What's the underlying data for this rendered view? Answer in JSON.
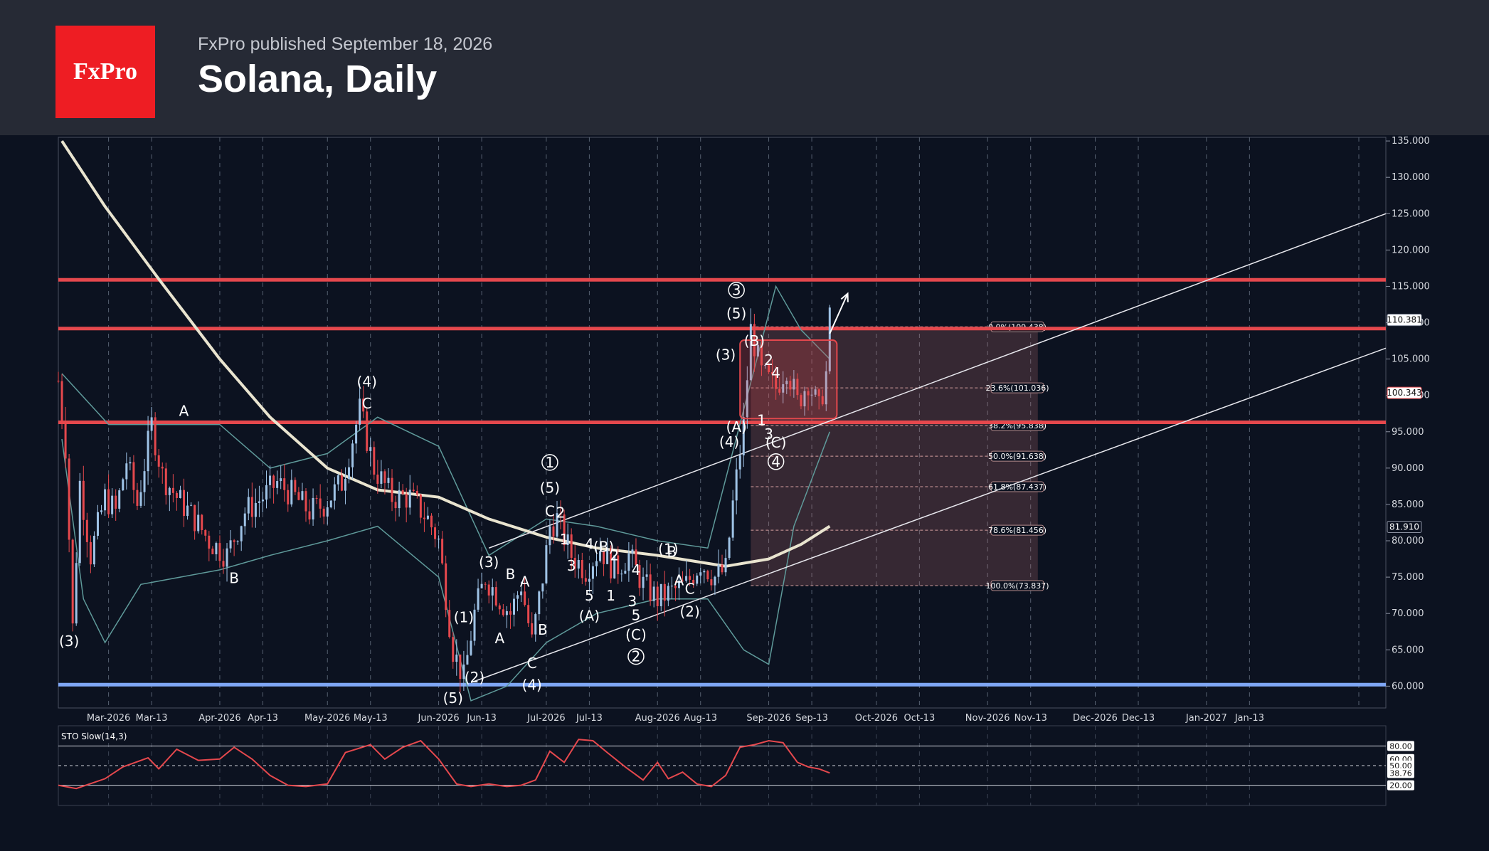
{
  "header": {
    "logo": "FxPro",
    "published": "FxPro published September 18, 2026",
    "title": "Solana, Daily"
  },
  "colors": {
    "background": "#0c1220",
    "header": "#262a35",
    "brand": "#ee1d23",
    "level": "#e5484d",
    "support": "#7fa7f5",
    "bull_candle": "#9fc3e6",
    "bear_candle": "#e5484d",
    "ma": "#e9e4cf"
  },
  "chart_data": {
    "type": "candlestick",
    "title": "Solana, Daily",
    "x_range": [
      "2026-02-15",
      "2027-02-20"
    ],
    "ylim": [
      57,
      135.5
    ],
    "grid": true,
    "x_ticks": [
      {
        "date": "2026-03-01",
        "label": "Mar-2026"
      },
      {
        "date": "2026-03-13",
        "label": "Mar-13"
      },
      {
        "date": "2026-04-01",
        "label": "Apr-2026"
      },
      {
        "date": "2026-04-13",
        "label": "Apr-13"
      },
      {
        "date": "2026-05-01",
        "label": "May-2026"
      },
      {
        "date": "2026-05-13",
        "label": "May-13"
      },
      {
        "date": "2026-06-01",
        "label": "Jun-2026"
      },
      {
        "date": "2026-06-13",
        "label": "Jun-13"
      },
      {
        "date": "2026-07-01",
        "label": "Jul-2026"
      },
      {
        "date": "2026-07-13",
        "label": "Jul-13"
      },
      {
        "date": "2026-08-01",
        "label": "Aug-2026"
      },
      {
        "date": "2026-08-13",
        "label": "Aug-13"
      },
      {
        "date": "2026-09-01",
        "label": "Sep-2026"
      },
      {
        "date": "2026-09-13",
        "label": "Sep-13"
      },
      {
        "date": "2026-10-01",
        "label": "Oct-2026"
      },
      {
        "date": "2026-10-13",
        "label": "Oct-13"
      },
      {
        "date": "2026-11-01",
        "label": "Nov-2026"
      },
      {
        "date": "2026-11-13",
        "label": "Nov-13"
      },
      {
        "date": "2026-12-01",
        "label": "Dec-2026"
      },
      {
        "date": "2026-12-13",
        "label": "Dec-13"
      },
      {
        "date": "2027-01-01",
        "label": "Jan-2027"
      },
      {
        "date": "2027-01-13",
        "label": "Jan-13"
      }
    ],
    "y_ticks": [
      "135.000",
      "130.000",
      "125.000",
      "120.000",
      "115.000",
      "110.000",
      "105.000",
      "100.000",
      "95.000",
      "90.000",
      "85.000",
      "80.000",
      "75.000",
      "70.000",
      "65.000",
      "60.000"
    ],
    "price_path": [
      [
        "2026-02-15",
        102
      ],
      [
        "2026-02-17",
        93
      ],
      [
        "2026-02-19",
        68
      ],
      [
        "2026-02-21",
        88
      ],
      [
        "2026-02-24",
        78
      ],
      [
        "2026-02-28",
        86
      ],
      [
        "2026-03-03",
        84
      ],
      [
        "2026-03-06",
        91
      ],
      [
        "2026-03-09",
        85
      ],
      [
        "2026-03-13",
        96
      ],
      [
        "2026-03-16",
        89
      ],
      [
        "2026-03-20",
        86
      ],
      [
        "2026-03-25",
        83
      ],
      [
        "2026-03-29",
        80
      ],
      [
        "2026-04-03",
        78
      ],
      [
        "2026-04-08",
        84
      ],
      [
        "2026-04-13",
        86
      ],
      [
        "2026-04-17",
        88
      ],
      [
        "2026-04-22",
        86
      ],
      [
        "2026-04-26",
        84
      ],
      [
        "2026-04-30",
        85
      ],
      [
        "2026-05-05",
        88
      ],
      [
        "2026-05-10",
        98
      ],
      [
        "2026-05-14",
        90
      ],
      [
        "2026-05-19",
        86
      ],
      [
        "2026-05-24",
        86
      ],
      [
        "2026-05-29",
        83
      ],
      [
        "2026-06-01",
        80
      ],
      [
        "2026-06-05",
        65
      ],
      [
        "2026-06-08",
        61
      ],
      [
        "2026-06-11",
        70
      ],
      [
        "2026-06-14",
        75
      ],
      [
        "2026-06-18",
        72
      ],
      [
        "2026-06-21",
        70
      ],
      [
        "2026-06-24",
        74
      ],
      [
        "2026-06-27",
        66
      ],
      [
        "2026-06-30",
        75
      ],
      [
        "2026-07-02",
        82
      ],
      [
        "2026-07-04",
        83
      ],
      [
        "2026-07-08",
        78
      ],
      [
        "2026-07-12",
        76
      ],
      [
        "2026-07-16",
        79
      ],
      [
        "2026-07-20",
        76
      ],
      [
        "2026-07-24",
        78
      ],
      [
        "2026-07-28",
        74
      ],
      [
        "2026-08-01",
        72
      ],
      [
        "2026-08-05",
        73
      ],
      [
        "2026-08-09",
        74
      ],
      [
        "2026-08-13",
        77
      ],
      [
        "2026-08-17",
        75
      ],
      [
        "2026-08-20",
        76
      ],
      [
        "2026-08-22",
        85
      ],
      [
        "2026-08-25",
        96
      ],
      [
        "2026-08-27",
        109
      ],
      [
        "2026-08-30",
        103
      ],
      [
        "2026-09-03",
        101
      ],
      [
        "2026-09-06",
        104
      ],
      [
        "2026-09-09",
        99
      ],
      [
        "2026-09-12",
        102
      ],
      [
        "2026-09-15",
        98
      ],
      [
        "2026-09-17",
        103
      ],
      [
        "2026-09-18",
        110.4
      ]
    ],
    "ma_path": [
      [
        "2026-02-16",
        135
      ],
      [
        "2026-02-28",
        126
      ],
      [
        "2026-03-15",
        116
      ],
      [
        "2026-04-01",
        105
      ],
      [
        "2026-04-15",
        97
      ],
      [
        "2026-05-01",
        90
      ],
      [
        "2026-05-15",
        87
      ],
      [
        "2026-06-01",
        86
      ],
      [
        "2026-06-15",
        83
      ],
      [
        "2026-07-01",
        80.5
      ],
      [
        "2026-07-15",
        79
      ],
      [
        "2026-08-01",
        78
      ],
      [
        "2026-08-20",
        76.5
      ],
      [
        "2026-09-01",
        77.5
      ],
      [
        "2026-09-10",
        79.5
      ],
      [
        "2026-09-18",
        82
      ]
    ],
    "bollinger_upper": [
      [
        "2026-02-16",
        103
      ],
      [
        "2026-03-01",
        96
      ],
      [
        "2026-03-15",
        96
      ],
      [
        "2026-04-01",
        96
      ],
      [
        "2026-04-15",
        90
      ],
      [
        "2026-05-01",
        92
      ],
      [
        "2026-05-15",
        97
      ],
      [
        "2026-06-01",
        93
      ],
      [
        "2026-06-15",
        78
      ],
      [
        "2026-07-01",
        83
      ],
      [
        "2026-07-15",
        82
      ],
      [
        "2026-08-01",
        80
      ],
      [
        "2026-08-15",
        79
      ],
      [
        "2026-08-25",
        98
      ],
      [
        "2026-09-03",
        115
      ],
      [
        "2026-09-10",
        109
      ],
      [
        "2026-09-18",
        105
      ]
    ],
    "bollinger_lower": [
      [
        "2026-02-16",
        94
      ],
      [
        "2026-02-22",
        72
      ],
      [
        "2026-02-28",
        66
      ],
      [
        "2026-03-10",
        74
      ],
      [
        "2026-04-01",
        76
      ],
      [
        "2026-04-15",
        78
      ],
      [
        "2026-05-01",
        80
      ],
      [
        "2026-05-15",
        82
      ],
      [
        "2026-06-01",
        75
      ],
      [
        "2026-06-10",
        58
      ],
      [
        "2026-06-20",
        60
      ],
      [
        "2026-07-01",
        66
      ],
      [
        "2026-07-15",
        70
      ],
      [
        "2026-08-01",
        72
      ],
      [
        "2026-08-15",
        72
      ],
      [
        "2026-08-25",
        65
      ],
      [
        "2026-09-01",
        63
      ],
      [
        "2026-09-08",
        82
      ],
      [
        "2026-09-18",
        95
      ]
    ],
    "horizontal_levels": [
      {
        "name": "resistance-115.9",
        "value": 115.9,
        "color": "#e5484d"
      },
      {
        "name": "resistance-109.2",
        "value": 109.2,
        "color": "#e5484d"
      },
      {
        "name": "resistance-96.3",
        "value": 96.3,
        "color": "#e5484d"
      },
      {
        "name": "support-60.2",
        "value": 60.2,
        "color": "#7fa7f5"
      }
    ],
    "channel_lines": [
      {
        "from": [
          "2026-06-15",
          79
        ],
        "to": [
          "2027-02-20",
          125
        ]
      },
      {
        "from": [
          "2026-06-10",
          60.5
        ],
        "to": [
          "2027-02-20",
          106.5
        ]
      }
    ],
    "fibonacci": {
      "from_date": "2026-08-27",
      "to_date": "2026-11-15",
      "levels": [
        {
          "value": 109.438,
          "label": "0.0%(109.438)"
        },
        {
          "value": 101.036,
          "label": "23.6%(101.036)"
        },
        {
          "value": 95.838,
          "label": "38.2%(95.838)"
        },
        {
          "value": 91.638,
          "label": "50.0%(91.638)"
        },
        {
          "value": 87.437,
          "label": "61.8%(87.437)"
        },
        {
          "value": 81.456,
          "label": "78.6%(81.456)"
        },
        {
          "value": 73.837,
          "label": "100.0%(73.837)"
        }
      ]
    },
    "consolidation_box": {
      "x0": "2026-08-24",
      "x1": "2026-09-20",
      "y0": 96.8,
      "y1": 107.6
    },
    "price_tags": [
      {
        "value": 110.381,
        "label": "110.381",
        "style": "outline"
      },
      {
        "value": 100.343,
        "label": "100.343",
        "style": "outline-red"
      },
      {
        "value": 81.91,
        "label": "81.910",
        "style": "dark"
      }
    ],
    "projection_arrow": {
      "from": [
        "2026-09-18",
        108.5
      ],
      "to": [
        "2026-09-23",
        114
      ]
    },
    "wave_labels": [
      {
        "t": "(3)",
        "d": "2026-02-18",
        "v": 65.5
      },
      {
        "t": "A",
        "d": "2026-03-22",
        "v": 97.2
      },
      {
        "t": "B",
        "d": "2026-04-05",
        "v": 74.2
      },
      {
        "t": "(4)",
        "d": "2026-05-12",
        "v": 101.2
      },
      {
        "t": "C",
        "d": "2026-05-12",
        "v": 98.2
      },
      {
        "t": "(5)",
        "d": "2026-06-05",
        "v": 57.7
      },
      {
        "t": "(2)",
        "d": "2026-06-11",
        "v": 60.5
      },
      {
        "t": "(1)",
        "d": "2026-06-08",
        "v": 68.8
      },
      {
        "t": "(3)",
        "d": "2026-06-15",
        "v": 76.4
      },
      {
        "t": "A",
        "d": "2026-06-18",
        "v": 65.9
      },
      {
        "t": "B",
        "d": "2026-06-21",
        "v": 74.7
      },
      {
        "t": "A",
        "d": "2026-06-25",
        "v": 73.7
      },
      {
        "t": "C",
        "d": "2026-06-27",
        "v": 62.5
      },
      {
        "t": "B",
        "d": "2026-06-30",
        "v": 67.1
      },
      {
        "t": "(4)",
        "d": "2026-06-27",
        "v": 59.5
      },
      {
        "t": "1",
        "d": "2026-07-02",
        "v": 90.1,
        "circled": true
      },
      {
        "t": "(5)",
        "d": "2026-07-02",
        "v": 86.6
      },
      {
        "t": "C",
        "d": "2026-07-02",
        "v": 83.4
      },
      {
        "t": "2",
        "d": "2026-07-05",
        "v": 83.2
      },
      {
        "t": "1",
        "d": "2026-07-06",
        "v": 79.5
      },
      {
        "t": "3",
        "d": "2026-07-08",
        "v": 75.9
      },
      {
        "t": "4",
        "d": "2026-07-13",
        "v": 78.9
      },
      {
        "t": "(B)",
        "d": "2026-07-17",
        "v": 78.5
      },
      {
        "t": "2",
        "d": "2026-07-20",
        "v": 77.3
      },
      {
        "t": "5",
        "d": "2026-07-13",
        "v": 71.8
      },
      {
        "t": "(A)",
        "d": "2026-07-13",
        "v": 69.0
      },
      {
        "t": "1",
        "d": "2026-07-19",
        "v": 71.8
      },
      {
        "t": "4",
        "d": "2026-07-26",
        "v": 75.3
      },
      {
        "t": "3",
        "d": "2026-07-25",
        "v": 71.0
      },
      {
        "t": "5",
        "d": "2026-07-26",
        "v": 69.1
      },
      {
        "t": "(C)",
        "d": "2026-07-26",
        "v": 66.4
      },
      {
        "t": "2",
        "d": "2026-07-26",
        "v": 63.4,
        "circled": true
      },
      {
        "t": "(1)",
        "d": "2026-08-04",
        "v": 78.2
      },
      {
        "t": "B",
        "d": "2026-08-05",
        "v": 77.8
      },
      {
        "t": "A",
        "d": "2026-08-07",
        "v": 73.9
      },
      {
        "t": "C",
        "d": "2026-08-10",
        "v": 72.7
      },
      {
        "t": "(2)",
        "d": "2026-08-10",
        "v": 69.6
      },
      {
        "t": "3",
        "d": "2026-08-23",
        "v": 113.8,
        "circled": true
      },
      {
        "t": "(5)",
        "d": "2026-08-23",
        "v": 110.6
      },
      {
        "t": "(3)",
        "d": "2026-08-20",
        "v": 104.9
      },
      {
        "t": "(B)",
        "d": "2026-08-28",
        "v": 106.8
      },
      {
        "t": "2",
        "d": "2026-09-01",
        "v": 104.2
      },
      {
        "t": "4",
        "d": "2026-09-03",
        "v": 102.4
      },
      {
        "t": "(4)",
        "d": "2026-08-21",
        "v": 92.9
      },
      {
        "t": "(A)",
        "d": "2026-08-23",
        "v": 95.0
      },
      {
        "t": "1",
        "d": "2026-08-30",
        "v": 95.9
      },
      {
        "t": "3",
        "d": "2026-09-01",
        "v": 94.0
      },
      {
        "t": "(C)",
        "d": "2026-09-03",
        "v": 92.8
      },
      {
        "t": "4",
        "d": "2026-09-03",
        "v": 90.2,
        "circled": true
      }
    ]
  },
  "oscillator": {
    "name": "STO Slow(14,3)",
    "levels": [
      80,
      50,
      20
    ],
    "tick_labels": [
      "80.00",
      "60.00",
      "50.00",
      "38.76",
      "20.00"
    ],
    "current_value": 38.76,
    "path": [
      [
        "2026-02-15",
        20
      ],
      [
        "2026-02-20",
        15
      ],
      [
        "2026-02-28",
        30
      ],
      [
        "2026-03-05",
        48
      ],
      [
        "2026-03-12",
        62
      ],
      [
        "2026-03-15",
        45
      ],
      [
        "2026-03-20",
        75
      ],
      [
        "2026-03-26",
        58
      ],
      [
        "2026-04-01",
        60
      ],
      [
        "2026-04-05",
        78
      ],
      [
        "2026-04-10",
        60
      ],
      [
        "2026-04-15",
        35
      ],
      [
        "2026-04-20",
        20
      ],
      [
        "2026-04-25",
        18
      ],
      [
        "2026-05-01",
        22
      ],
      [
        "2026-05-06",
        70
      ],
      [
        "2026-05-13",
        82
      ],
      [
        "2026-05-17",
        60
      ],
      [
        "2026-05-22",
        78
      ],
      [
        "2026-05-27",
        88
      ],
      [
        "2026-06-01",
        60
      ],
      [
        "2026-06-06",
        22
      ],
      [
        "2026-06-10",
        18
      ],
      [
        "2026-06-15",
        22
      ],
      [
        "2026-06-20",
        18
      ],
      [
        "2026-06-24",
        20
      ],
      [
        "2026-06-28",
        28
      ],
      [
        "2026-07-02",
        72
      ],
      [
        "2026-07-06",
        55
      ],
      [
        "2026-07-10",
        90
      ],
      [
        "2026-07-14",
        88
      ],
      [
        "2026-07-18",
        70
      ],
      [
        "2026-07-23",
        48
      ],
      [
        "2026-07-28",
        28
      ],
      [
        "2026-08-01",
        55
      ],
      [
        "2026-08-04",
        30
      ],
      [
        "2026-08-08",
        40
      ],
      [
        "2026-08-12",
        22
      ],
      [
        "2026-08-16",
        18
      ],
      [
        "2026-08-20",
        35
      ],
      [
        "2026-08-24",
        78
      ],
      [
        "2026-08-28",
        82
      ],
      [
        "2026-09-01",
        88
      ],
      [
        "2026-09-05",
        85
      ],
      [
        "2026-09-09",
        55
      ],
      [
        "2026-09-12",
        48
      ],
      [
        "2026-09-15",
        45
      ],
      [
        "2026-09-18",
        38.76
      ]
    ]
  }
}
